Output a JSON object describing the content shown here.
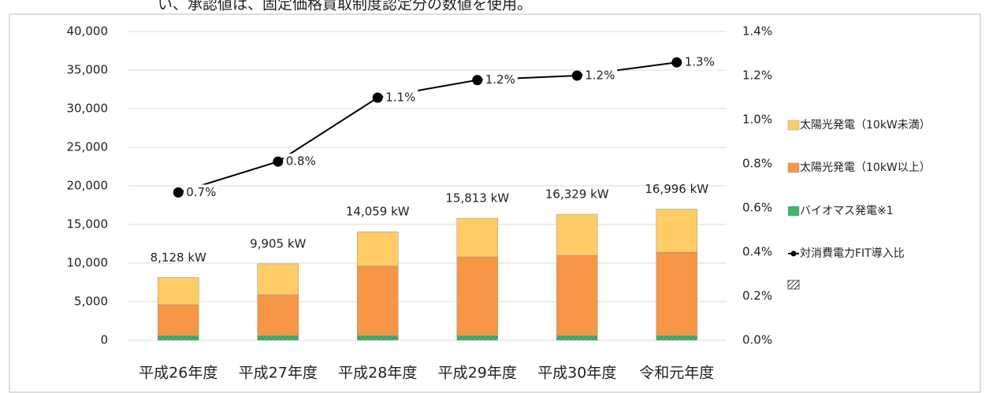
{
  "chart_data": {
    "type": "bar_line",
    "header_note": "い、承認値は、固定価格買取制度認定分の数値を使用。",
    "categories": [
      "平成26年度",
      "平成27年度",
      "平成28年度",
      "平成29年度",
      "平成30年度",
      "令和元年度"
    ],
    "series": [
      {
        "name": "太陽光発電（10kW未満）",
        "color": "#ffcc66",
        "values": [
          3528,
          4005,
          4459,
          5013,
          5329,
          5596
        ]
      },
      {
        "name": "太陽光発電（10kW以上）",
        "color": "#f79646",
        "values": [
          4000,
          5300,
          9000,
          10200,
          10400,
          10800
        ]
      },
      {
        "name": "バイオマス発電※1",
        "color": "#3cb371",
        "values": [
          600,
          600,
          600,
          600,
          600,
          600
        ]
      },
      {
        "name": "対消費電力FIT導入比",
        "color": "#000000",
        "axis": "y2",
        "values": [
          0.67,
          0.81,
          1.1,
          1.18,
          1.2,
          1.26
        ],
        "value_labels": [
          "0.7%",
          "0.8%",
          "1.1%",
          "1.2%",
          "1.2%",
          "1.3%"
        ]
      }
    ],
    "totals": [
      8128,
      9905,
      14059,
      15813,
      16329,
      16996
    ],
    "total_labels": [
      "8,128 kW",
      "9,905 kW",
      "14,059 kW",
      "15,813 kW",
      "16,329 kW",
      "16,996 kW"
    ],
    "ylim": [
      0,
      40000
    ],
    "yticks": [
      0,
      {
        "value": 5000,
        "label": "5,000"
      },
      {
        "value": 10000,
        "label": "10,000"
      },
      {
        "value": 15000,
        "label": "15,000"
      },
      {
        "value": 20000,
        "label": "20,000"
      },
      {
        "value": 25000,
        "label": "25,000"
      },
      {
        "value": 30000,
        "label": "30,000"
      },
      {
        "value": 35000,
        "label": "35,000"
      },
      {
        "value": 40000,
        "label": "40,000"
      }
    ],
    "y2lim": [
      0,
      1.4
    ],
    "y2ticks": [
      {
        "value": 0,
        "label": "0.0%"
      },
      {
        "value": 0.2,
        "label": "0.2%"
      },
      {
        "value": 0.4,
        "label": "0.4%"
      },
      {
        "value": 0.6,
        "label": "0.6%"
      },
      {
        "value": 0.8,
        "label": "0.8%"
      },
      {
        "value": 1.0,
        "label": "1.0%"
      },
      {
        "value": 1.2,
        "label": "1.2%"
      },
      {
        "value": 1.4,
        "label": "1.4%"
      }
    ],
    "grid": true,
    "legend": "right"
  }
}
